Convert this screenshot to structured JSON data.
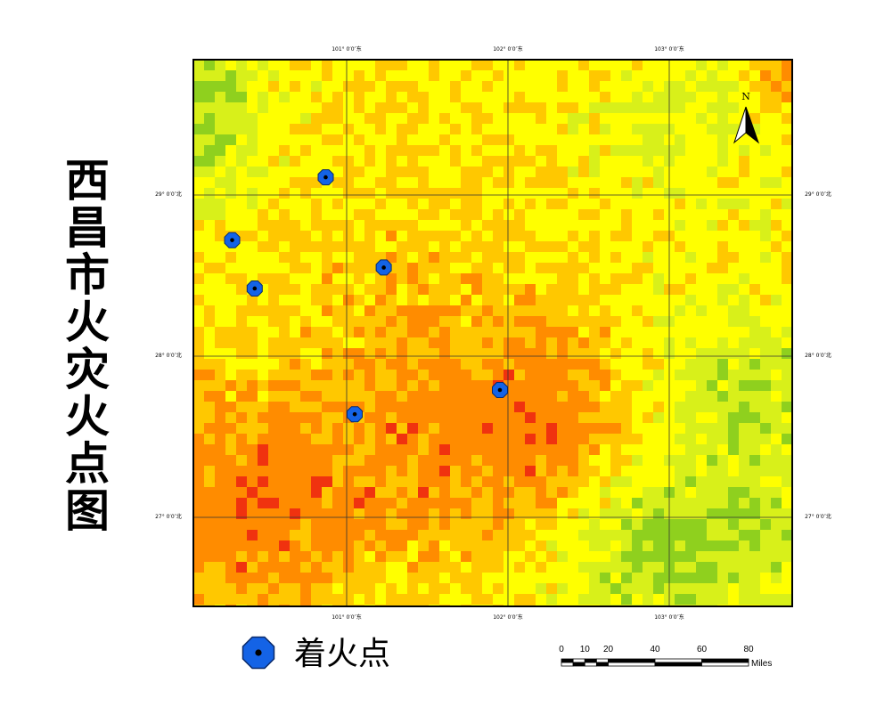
{
  "title": [
    "西",
    "昌",
    "市",
    "火",
    "灾",
    "火",
    "点",
    "图"
  ],
  "north_arrow": {
    "label": "N",
    "icon": "north-arrow-icon"
  },
  "longitude_ticks": [
    "101° 0′0″东",
    "102° 0′0″东",
    "103° 0′0″东"
  ],
  "latitude_ticks": [
    "29° 0′0″北",
    "28° 0′0″北",
    "27° 0′0″北"
  ],
  "legend": {
    "icon": "fire-point-icon",
    "label": "着火点"
  },
  "scale_bar": {
    "ticks": [
      "0",
      "10",
      "20",
      "40",
      "60",
      "80"
    ],
    "tick_values": [
      0,
      10,
      20,
      40,
      60,
      80
    ],
    "unit": "Miles"
  },
  "fire_points": [
    {
      "lon": 100.87,
      "lat": 29.11
    },
    {
      "lon": 100.29,
      "lat": 28.72
    },
    {
      "lon": 100.43,
      "lat": 28.42
    },
    {
      "lon": 101.23,
      "lat": 28.55
    },
    {
      "lon": 101.05,
      "lat": 27.64
    },
    {
      "lon": 101.95,
      "lat": 27.79
    }
  ],
  "colors": {
    "green": "#8fd01e",
    "yellow_green": "#d8f01a",
    "yellow": "#ffff00",
    "light_orange": "#ffc800",
    "orange": "#ff8c00",
    "red": "#f0320f",
    "fire_point": "#1463e6"
  }
}
